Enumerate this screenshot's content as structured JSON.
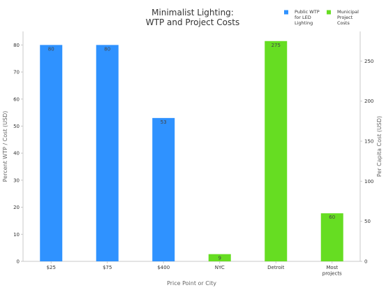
{
  "chart_data": {
    "type": "bar",
    "title": [
      "Minimalist Lighting:",
      "WTP and Project Costs"
    ],
    "xlabel": "Price Point or City",
    "ylabel_left": "Percent WTP / Cost (USD)",
    "ylabel_right": "Per Capita Cost (USD)",
    "categories": [
      "$25",
      "$75",
      "$400",
      "NYC",
      "Detroit",
      [
        "Most",
        "projects"
      ]
    ],
    "ylim_left": [
      0,
      85
    ],
    "ylim_right": [
      0,
      287
    ],
    "yticks_left": [
      0,
      10,
      20,
      30,
      40,
      50,
      60,
      70,
      80
    ],
    "yticks_right": [
      0,
      50,
      100,
      150,
      200,
      250
    ],
    "series": [
      {
        "name": [
          "Public WTP",
          "for LED",
          "Lighting"
        ],
        "axis": "left",
        "color": "#2f92ff",
        "values": [
          80,
          80,
          53,
          null,
          null,
          null
        ],
        "labels": [
          "80",
          "80",
          "53",
          "",
          "",
          ""
        ]
      },
      {
        "name": [
          "Municipal",
          "Project",
          "Costs"
        ],
        "axis": "right",
        "color": "#66dd22",
        "values": [
          null,
          null,
          null,
          9,
          275,
          60
        ],
        "labels": [
          "",
          "",
          "",
          "9",
          "275",
          "60"
        ]
      }
    ],
    "grid": false,
    "legend": "top-right"
  }
}
